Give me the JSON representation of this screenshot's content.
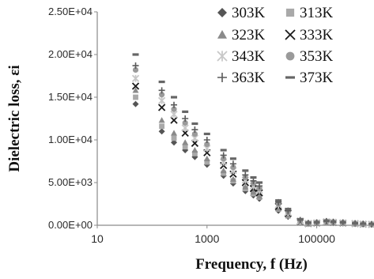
{
  "chart_data": {
    "type": "scatter",
    "title": "",
    "xlabel": "Frequency, f  (Hz)",
    "ylabel": "Dielectric loss, εi",
    "xscale": "log",
    "xlim": [
      10,
      1000000
    ],
    "ylim": [
      0,
      25000
    ],
    "x_ticks": [
      10,
      1000,
      100000
    ],
    "x_tick_labels": [
      "10",
      "1000",
      "100000"
    ],
    "y_ticks": [
      0,
      5000,
      10000,
      15000,
      20000,
      25000
    ],
    "y_tick_labels": [
      "0.00E+00",
      "5.00E+03",
      "1.00E+04",
      "1.50E+04",
      "2.00E+04",
      "2.50E+04"
    ],
    "grid": false,
    "legend_position": "top-right",
    "x": [
      50,
      150,
      250,
      400,
      600,
      1000,
      2000,
      3000,
      5000,
      7000,
      9000,
      20000,
      30000,
      50000,
      70000,
      100000,
      150000,
      200000,
      300000,
      500000,
      700000,
      1000000
    ],
    "series": [
      {
        "name": "303K",
        "marker": "diamond",
        "color": "#555555",
        "values": [
          14200,
          11000,
          9700,
          8800,
          8000,
          7100,
          5800,
          4900,
          4000,
          3500,
          3100,
          1700,
          1000,
          300,
          150,
          200,
          300,
          250,
          200,
          150,
          100,
          80
        ]
      },
      {
        "name": "313K",
        "marker": "square",
        "color": "#a9a9a9",
        "values": [
          15000,
          11600,
          10200,
          9200,
          8400,
          7400,
          6100,
          5200,
          4300,
          3700,
          3300,
          1900,
          1100,
          350,
          160,
          220,
          330,
          280,
          220,
          170,
          110,
          90
        ]
      },
      {
        "name": "323K",
        "marker": "triangle",
        "color": "#8a8a8a",
        "values": [
          15800,
          12300,
          10800,
          9700,
          8800,
          7800,
          6400,
          5400,
          4500,
          3900,
          3400,
          2000,
          1200,
          400,
          180,
          240,
          360,
          300,
          240,
          180,
          120,
          95
        ]
      },
      {
        "name": "333K",
        "marker": "x",
        "color": "#1a1a1a",
        "values": [
          16300,
          13800,
          12300,
          10800,
          9600,
          8500,
          7000,
          6000,
          5000,
          4300,
          3800,
          2200,
          1400,
          450,
          200,
          260,
          390,
          330,
          260,
          190,
          130,
          100
        ]
      },
      {
        "name": "343K",
        "marker": "asterisk",
        "color": "#c8c8c8",
        "values": [
          17200,
          14600,
          13000,
          11400,
          10200,
          9000,
          7400,
          6400,
          5300,
          4600,
          4100,
          2400,
          1500,
          500,
          220,
          280,
          420,
          350,
          280,
          200,
          140,
          110
        ]
      },
      {
        "name": "353K",
        "marker": "circle",
        "color": "#9a9a9a",
        "values": [
          18200,
          15300,
          13600,
          12000,
          10700,
          9500,
          7800,
          6800,
          5600,
          4900,
          4300,
          2500,
          1600,
          550,
          240,
          300,
          450,
          370,
          300,
          210,
          150,
          115
        ]
      },
      {
        "name": "363K",
        "marker": "plus",
        "color": "#5a5a5a",
        "values": [
          18700,
          15800,
          14100,
          12500,
          11200,
          10000,
          8200,
          7200,
          5900,
          5200,
          4600,
          2700,
          1700,
          600,
          260,
          320,
          480,
          390,
          320,
          220,
          160,
          120
        ]
      },
      {
        "name": "373K",
        "marker": "dash",
        "color": "#666666",
        "values": [
          20000,
          16800,
          15000,
          13300,
          11900,
          10700,
          8800,
          7800,
          6400,
          5600,
          5000,
          2900,
          1900,
          700,
          300,
          350,
          520,
          420,
          350,
          240,
          170,
          130
        ]
      }
    ]
  }
}
